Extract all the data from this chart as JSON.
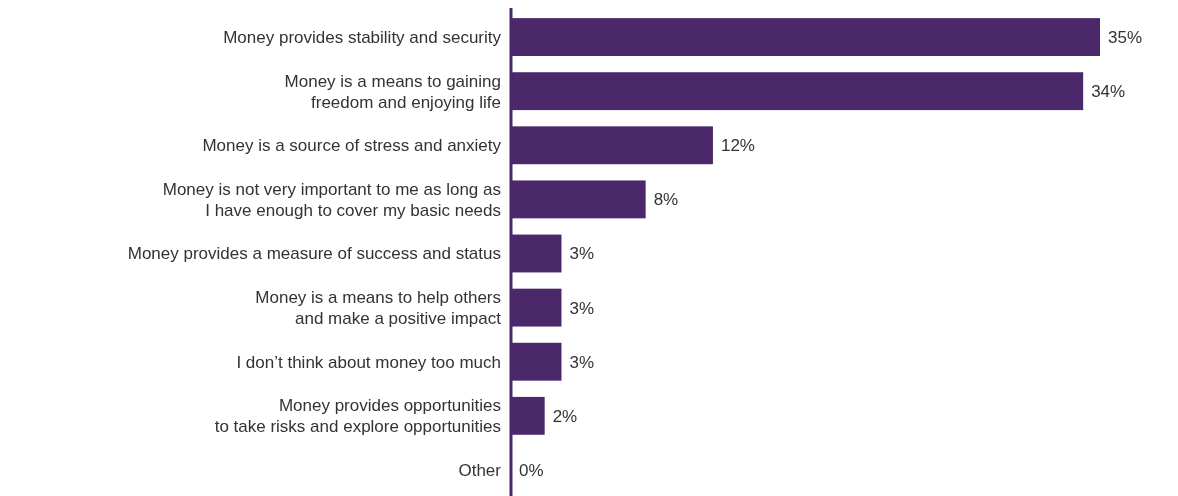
{
  "chart_data": {
    "type": "bar",
    "orientation": "horizontal",
    "data_labels": true,
    "categories": [
      "Money provides stability and security",
      "Money is a means to gaining\nfreedom and enjoying life",
      "Money is a source of stress and anxiety",
      "Money is not very important to me as long as\nI have enough to cover my basic needs",
      "Money provides a measure of success and status",
      "Money is a means to help others\nand make a positive impact",
      "I don’t think about money too much",
      "Money provides opportunities\nto take risks and explore opportunities",
      "Other"
    ],
    "values": [
      35,
      34,
      12,
      8,
      3,
      3,
      3,
      2,
      0
    ],
    "value_labels": [
      "35%",
      "34%",
      "12%",
      "8%",
      "3%",
      "3%",
      "3%",
      "2%",
      "0%"
    ],
    "color": "#4b2869"
  }
}
